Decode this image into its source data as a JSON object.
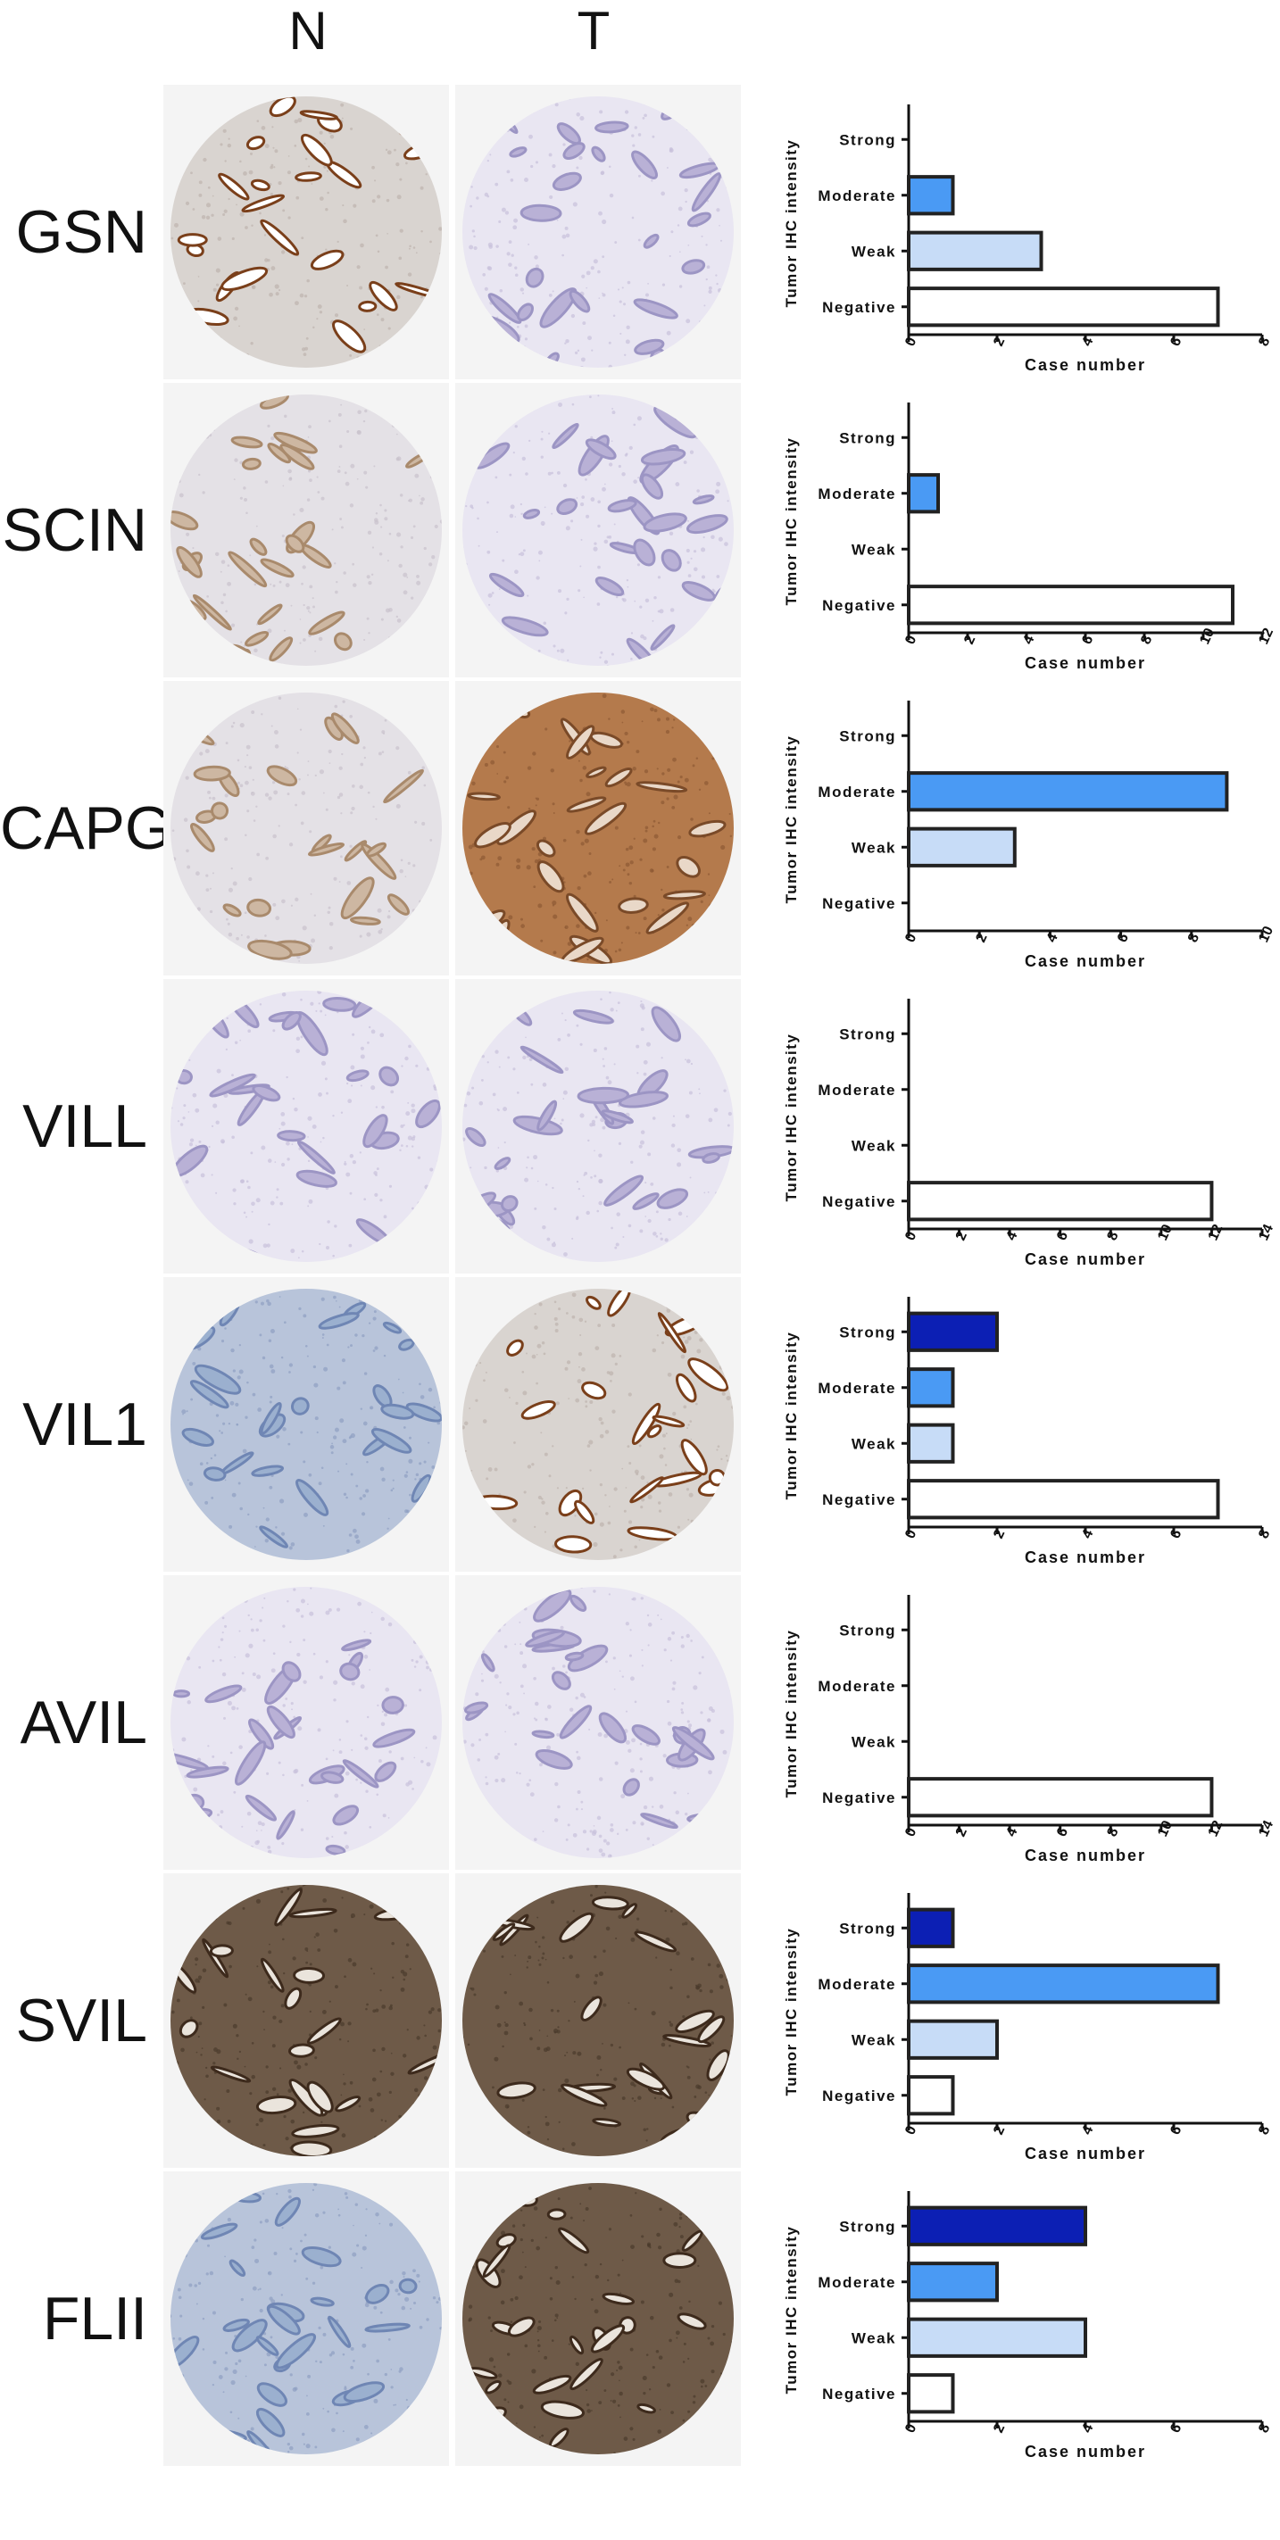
{
  "headers": {
    "normal": "N",
    "tumor": "T"
  },
  "colors": {
    "strong": "#0c1fb4",
    "moderate": "#4a9af4",
    "weak": "#c7dcf7",
    "negative": "#ffffff",
    "bar_edge": "#222222"
  },
  "chart_data": [
    {
      "type": "bar",
      "gene": "GSN",
      "orientation": "horizontal",
      "categories": [
        "Negative",
        "Weak",
        "Moderate",
        "Strong"
      ],
      "values": [
        7,
        3,
        1,
        0
      ],
      "xlabel": "Case number",
      "ylabel": "Tumor IHC intensity",
      "xlim": [
        0,
        8
      ],
      "xticks": [
        0,
        2,
        4,
        6,
        8
      ],
      "normal_stain": "strong-glandular",
      "tumor_stain": "negative"
    },
    {
      "type": "bar",
      "gene": "SCIN",
      "orientation": "horizontal",
      "categories": [
        "Negative",
        "Weak",
        "Moderate",
        "Strong"
      ],
      "values": [
        11,
        0,
        1,
        0
      ],
      "xlabel": "Case number",
      "ylabel": "Tumor IHC intensity",
      "xlim": [
        0,
        12
      ],
      "xticks": [
        0,
        2,
        4,
        6,
        8,
        10,
        12
      ],
      "normal_stain": "weak",
      "tumor_stain": "negative"
    },
    {
      "type": "bar",
      "gene": "CAPG",
      "orientation": "horizontal",
      "categories": [
        "Negative",
        "Weak",
        "Moderate",
        "Strong"
      ],
      "values": [
        0,
        3,
        9,
        0
      ],
      "xlabel": "Case number",
      "ylabel": "Tumor IHC intensity",
      "xlim": [
        0,
        10
      ],
      "xticks": [
        0,
        2,
        4,
        6,
        8,
        10
      ],
      "normal_stain": "weak",
      "tumor_stain": "moderate"
    },
    {
      "type": "bar",
      "gene": "VILL",
      "orientation": "horizontal",
      "categories": [
        "Negative",
        "Weak",
        "Moderate",
        "Strong"
      ],
      "values": [
        12,
        0,
        0,
        0
      ],
      "xlabel": "Case number",
      "ylabel": "Tumor IHC intensity",
      "xlim": [
        0,
        14
      ],
      "xticks": [
        0,
        2,
        4,
        6,
        8,
        10,
        12,
        14
      ],
      "normal_stain": "negative",
      "tumor_stain": "negative"
    },
    {
      "type": "bar",
      "gene": "VIL1",
      "orientation": "horizontal",
      "categories": [
        "Negative",
        "Weak",
        "Moderate",
        "Strong"
      ],
      "values": [
        7,
        1,
        1,
        2
      ],
      "xlabel": "Case number",
      "ylabel": "Tumor IHC intensity",
      "xlim": [
        0,
        8
      ],
      "xticks": [
        0,
        2,
        4,
        6,
        8
      ],
      "normal_stain": "negative-blue",
      "tumor_stain": "strong-glandular"
    },
    {
      "type": "bar",
      "gene": "AVIL",
      "orientation": "horizontal",
      "categories": [
        "Negative",
        "Weak",
        "Moderate",
        "Strong"
      ],
      "values": [
        12,
        0,
        0,
        0
      ],
      "xlabel": "Case number",
      "ylabel": "Tumor IHC intensity",
      "xlim": [
        0,
        14
      ],
      "xticks": [
        0,
        2,
        4,
        6,
        8,
        10,
        12,
        14
      ],
      "normal_stain": "negative",
      "tumor_stain": "negative"
    },
    {
      "type": "bar",
      "gene": "SVIL",
      "orientation": "horizontal",
      "categories": [
        "Negative",
        "Weak",
        "Moderate",
        "Strong"
      ],
      "values": [
        1,
        2,
        7,
        1
      ],
      "xlabel": "Case number",
      "ylabel": "Tumor IHC intensity",
      "xlim": [
        0,
        8
      ],
      "xticks": [
        0,
        2,
        4,
        6,
        8
      ],
      "normal_stain": "strong-dark",
      "tumor_stain": "strong-dark"
    },
    {
      "type": "bar",
      "gene": "FLII",
      "orientation": "horizontal",
      "categories": [
        "Negative",
        "Weak",
        "Moderate",
        "Strong"
      ],
      "values": [
        1,
        4,
        2,
        4
      ],
      "xlabel": "Case number",
      "ylabel": "Tumor IHC intensity",
      "xlim": [
        0,
        8
      ],
      "xticks": [
        0,
        2,
        4,
        6,
        8
      ],
      "normal_stain": "negative-blue",
      "tumor_stain": "strong-dark"
    }
  ]
}
